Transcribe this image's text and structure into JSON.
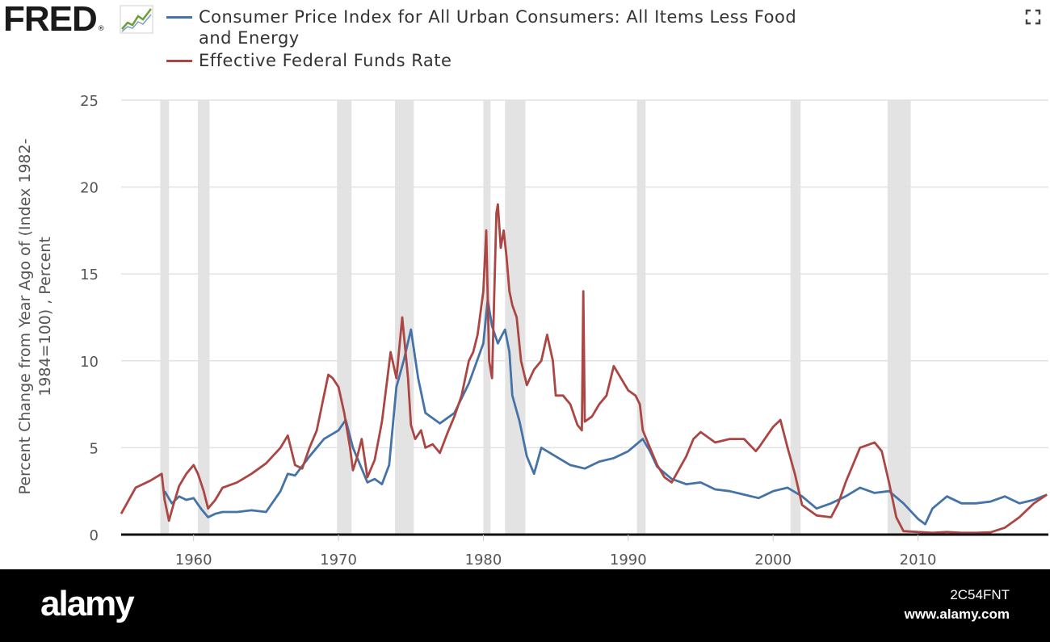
{
  "logo": {
    "text": "FRED",
    "reg": "®"
  },
  "chart_data": {
    "type": "line",
    "legend_position": "top-left",
    "grid": true,
    "ylabel": "Percent Change from Year Ago of (Index 1982-1984=100) , Percent",
    "ylabel_lines": [
      "Percent Change from Year Ago of (Index 1982-",
      "1984=100) , Percent"
    ],
    "xlim": [
      1955,
      2019
    ],
    "ylim": [
      0,
      25
    ],
    "xticks": [
      1960,
      1970,
      1980,
      1990,
      2000,
      2010
    ],
    "xtick_labels": [
      "1960",
      "1970",
      "1980",
      "1990",
      "2000",
      "2010"
    ],
    "yticks": [
      0,
      5,
      10,
      15,
      20,
      25
    ],
    "ytick_labels": [
      "0",
      "5",
      "10",
      "15",
      "20",
      "25"
    ],
    "recessions": [
      [
        1957.7,
        1958.3
      ],
      [
        1960.3,
        1961.1
      ],
      [
        1969.9,
        1970.9
      ],
      [
        1973.9,
        1975.2
      ],
      [
        1980.0,
        1980.5
      ],
      [
        1981.5,
        1982.9
      ],
      [
        1990.6,
        1991.2
      ],
      [
        2001.2,
        2001.9
      ],
      [
        2007.9,
        2009.5
      ]
    ],
    "series": [
      {
        "name": "Consumer Price Index for All Urban Consumers: All Items Less Food and Energy",
        "color": "#4572a7",
        "x": [
          1958,
          1958.5,
          1959,
          1959.5,
          1960,
          1960.5,
          1961,
          1961.5,
          1962,
          1963,
          1964,
          1965,
          1966,
          1966.5,
          1967,
          1968,
          1969,
          1970,
          1970.5,
          1971,
          1971.5,
          1972,
          1972.5,
          1973,
          1973.5,
          1974,
          1974.5,
          1975,
          1975.5,
          1976,
          1977,
          1978,
          1979,
          1980,
          1980.3,
          1980.6,
          1981,
          1981.3,
          1981.5,
          1981.8,
          1982,
          1982.5,
          1983,
          1983.5,
          1984,
          1985,
          1986,
          1987,
          1988,
          1989,
          1990,
          1991,
          1991.5,
          1992,
          1993,
          1994,
          1995,
          1996,
          1997,
          1998,
          1999,
          2000,
          2001,
          2002,
          2003,
          2004,
          2005,
          2006,
          2007,
          2008,
          2009,
          2010,
          2010.5,
          2011,
          2012,
          2013,
          2014,
          2015,
          2016,
          2017,
          2018,
          2018.9
        ],
        "values": [
          2.5,
          1.8,
          2.2,
          2.0,
          2.1,
          1.5,
          1.0,
          1.2,
          1.3,
          1.3,
          1.4,
          1.3,
          2.5,
          3.5,
          3.4,
          4.5,
          5.5,
          6.0,
          6.6,
          5.0,
          4.0,
          3.0,
          3.2,
          2.9,
          4.0,
          8.5,
          10.0,
          11.8,
          9.0,
          7.0,
          6.4,
          7.0,
          8.7,
          11.0,
          13.5,
          12.0,
          11.0,
          11.5,
          11.8,
          10.5,
          8.0,
          6.5,
          4.5,
          3.5,
          5.0,
          4.5,
          4.0,
          3.8,
          4.2,
          4.4,
          4.8,
          5.5,
          4.8,
          3.9,
          3.2,
          2.9,
          3.0,
          2.6,
          2.5,
          2.3,
          2.1,
          2.5,
          2.7,
          2.2,
          1.5,
          1.8,
          2.2,
          2.7,
          2.4,
          2.5,
          1.8,
          0.9,
          0.6,
          1.5,
          2.2,
          1.8,
          1.8,
          1.9,
          2.2,
          1.8,
          2.0,
          2.3
        ]
      },
      {
        "name": "Effective Federal Funds Rate",
        "color": "#aa4643",
        "x": [
          1955,
          1956,
          1957,
          1957.8,
          1958,
          1958.3,
          1958.6,
          1959,
          1959.5,
          1960,
          1960.3,
          1960.7,
          1961,
          1961.5,
          1962,
          1963,
          1964,
          1965,
          1966,
          1966.5,
          1967,
          1967.5,
          1968,
          1968.5,
          1969,
          1969.3,
          1969.6,
          1970,
          1970.4,
          1970.8,
          1971,
          1971.3,
          1971.6,
          1972,
          1972.5,
          1973,
          1973.3,
          1973.6,
          1974,
          1974.4,
          1974.8,
          1975,
          1975.3,
          1975.7,
          1976,
          1976.5,
          1977,
          1977.5,
          1978,
          1978.5,
          1979,
          1979.3,
          1979.6,
          1980,
          1980.2,
          1980.4,
          1980.6,
          1980.9,
          1981,
          1981.2,
          1981.4,
          1981.6,
          1981.8,
          1982,
          1982.3,
          1982.6,
          1983,
          1983.5,
          1984,
          1984.4,
          1984.8,
          1985,
          1985.5,
          1986,
          1986.5,
          1986.8,
          1986.9,
          1987,
          1987.5,
          1988,
          1988.5,
          1989,
          1989.5,
          1990,
          1990.5,
          1990.8,
          1991,
          1991.5,
          1992,
          1992.5,
          1993,
          1994,
          1994.5,
          1995,
          1996,
          1997,
          1998,
          1998.8,
          1999,
          2000,
          2000.5,
          2001,
          2001.5,
          2002,
          2003,
          2004,
          2004.5,
          2005,
          2006,
          2007,
          2007.5,
          2008,
          2008.5,
          2009,
          2010,
          2011,
          2012,
          2013,
          2014,
          2015,
          2016,
          2017,
          2018,
          2018.9
        ],
        "values": [
          1.2,
          2.7,
          3.1,
          3.5,
          2.0,
          0.8,
          1.7,
          2.8,
          3.5,
          4.0,
          3.5,
          2.5,
          1.5,
          2.0,
          2.7,
          3.0,
          3.5,
          4.1,
          5.0,
          5.7,
          4.0,
          3.8,
          5.0,
          6.0,
          8.0,
          9.2,
          9.0,
          8.5,
          7.0,
          5.0,
          3.7,
          4.5,
          5.5,
          3.3,
          4.3,
          6.5,
          8.5,
          10.5,
          9.0,
          12.5,
          9.0,
          6.3,
          5.5,
          6.0,
          5.0,
          5.2,
          4.7,
          5.8,
          6.8,
          8.0,
          10.0,
          10.5,
          11.5,
          14.0,
          17.5,
          10.0,
          9.0,
          18.5,
          19.0,
          16.5,
          17.5,
          16.0,
          14.0,
          13.2,
          12.5,
          10.0,
          8.6,
          9.5,
          10.0,
          11.5,
          10.0,
          8.0,
          8.0,
          7.5,
          6.3,
          6.0,
          14.0,
          6.5,
          6.8,
          7.5,
          8.0,
          9.7,
          9.0,
          8.3,
          8.0,
          7.5,
          6.0,
          5.0,
          4.0,
          3.3,
          3.0,
          4.5,
          5.5,
          5.9,
          5.3,
          5.5,
          5.5,
          4.8,
          5.0,
          6.2,
          6.6,
          5.0,
          3.5,
          1.7,
          1.1,
          1.0,
          1.8,
          3.0,
          5.0,
          5.3,
          4.8,
          3.0,
          1.0,
          0.2,
          0.15,
          0.1,
          0.15,
          0.1,
          0.1,
          0.13,
          0.4,
          1.0,
          1.8,
          2.3
        ]
      }
    ]
  },
  "footer": {
    "brand": "alamy",
    "image_id": "2C54FNT",
    "url": "www.alamy.com"
  }
}
